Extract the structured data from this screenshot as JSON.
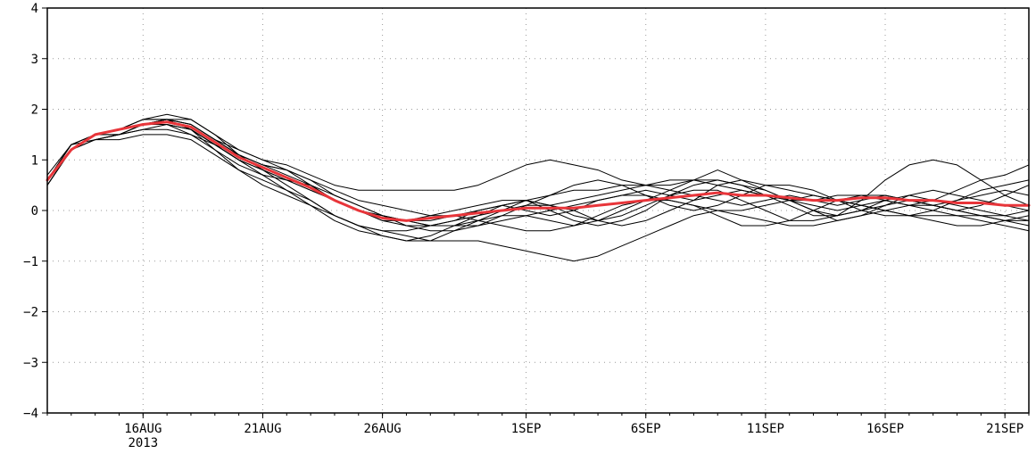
{
  "chart_data": {
    "type": "line",
    "title": "",
    "xlabel": "",
    "ylabel": "",
    "x_start": "2013-08-12",
    "x_end": "2013-09-22",
    "xlim": [
      "2013-08-12",
      "2013-09-22"
    ],
    "ylim": [
      -4,
      4
    ],
    "x_ticks": [
      {
        "date": "2013-08-16",
        "label": "16AUG",
        "sublabel": "2013"
      },
      {
        "date": "2013-08-21",
        "label": "21AUG"
      },
      {
        "date": "2013-08-26",
        "label": "26AUG"
      },
      {
        "date": "2013-09-01",
        "label": "1SEP"
      },
      {
        "date": "2013-09-06",
        "label": "6SEP"
      },
      {
        "date": "2013-09-11",
        "label": "11SEP"
      },
      {
        "date": "2013-09-16",
        "label": "16SEP"
      },
      {
        "date": "2013-09-21",
        "label": "21SEP"
      }
    ],
    "y_ticks": [
      {
        "value": 4,
        "label": "4"
      },
      {
        "value": 3,
        "label": "3"
      },
      {
        "value": 2,
        "label": "2"
      },
      {
        "value": 1,
        "label": "1"
      },
      {
        "value": 0,
        "label": "0"
      },
      {
        "value": -1,
        "label": "−1"
      },
      {
        "value": -2,
        "label": "−2"
      },
      {
        "value": -3,
        "label": "−3"
      },
      {
        "value": -4,
        "label": "−4"
      }
    ],
    "grid": true,
    "legend": "none",
    "ensemble_color": "#000000",
    "mean_color": "#e8353a",
    "x": [
      "2013-08-12",
      "2013-08-13",
      "2013-08-14",
      "2013-08-15",
      "2013-08-16",
      "2013-08-17",
      "2013-08-18",
      "2013-08-19",
      "2013-08-20",
      "2013-08-21",
      "2013-08-22",
      "2013-08-23",
      "2013-08-24",
      "2013-08-25",
      "2013-08-26",
      "2013-08-27",
      "2013-08-28",
      "2013-08-29",
      "2013-08-30",
      "2013-08-31",
      "2013-09-01",
      "2013-09-02",
      "2013-09-03",
      "2013-09-04",
      "2013-09-05",
      "2013-09-06",
      "2013-09-07",
      "2013-09-08",
      "2013-09-09",
      "2013-09-10",
      "2013-09-11",
      "2013-09-12",
      "2013-09-13",
      "2013-09-14",
      "2013-09-15",
      "2013-09-16",
      "2013-09-17",
      "2013-09-18",
      "2013-09-19",
      "2013-09-20",
      "2013-09-21",
      "2013-09-22"
    ],
    "series": [
      {
        "role": "ensemble",
        "values": [
          0.5,
          1.2,
          1.5,
          1.5,
          1.6,
          1.7,
          1.6,
          1.3,
          1.0,
          0.8,
          0.6,
          0.4,
          0.2,
          0.0,
          -0.1,
          -0.2,
          -0.2,
          -0.1,
          0.0,
          0.1,
          0.0,
          -0.1,
          0.0,
          0.2,
          0.3,
          0.4,
          0.3,
          0.2,
          0.3,
          0.4,
          0.3,
          0.2,
          0.1,
          0.0,
          0.1,
          0.2,
          0.1,
          0.0,
          -0.1,
          -0.2,
          -0.3,
          -0.4
        ]
      },
      {
        "role": "ensemble",
        "values": [
          0.6,
          1.3,
          1.4,
          1.4,
          1.5,
          1.5,
          1.4,
          1.1,
          0.8,
          0.6,
          0.4,
          0.1,
          -0.2,
          -0.4,
          -0.5,
          -0.6,
          -0.5,
          -0.3,
          -0.1,
          0.1,
          0.2,
          0.0,
          -0.2,
          -0.3,
          -0.2,
          0.0,
          0.3,
          0.5,
          0.6,
          0.5,
          0.4,
          0.2,
          0.0,
          -0.1,
          0.0,
          0.2,
          0.3,
          0.2,
          0.1,
          0.0,
          -0.1,
          -0.2
        ]
      },
      {
        "role": "ensemble",
        "values": [
          0.7,
          1.3,
          1.5,
          1.6,
          1.8,
          1.9,
          1.8,
          1.5,
          1.2,
          1.0,
          0.9,
          0.7,
          0.5,
          0.4,
          0.4,
          0.4,
          0.4,
          0.4,
          0.5,
          0.7,
          0.9,
          1.0,
          0.9,
          0.8,
          0.6,
          0.5,
          0.4,
          0.3,
          0.2,
          0.1,
          0.2,
          0.3,
          0.2,
          0.1,
          0.2,
          0.3,
          0.2,
          0.1,
          0.0,
          0.1,
          0.3,
          0.5
        ]
      },
      {
        "role": "ensemble",
        "values": [
          0.6,
          1.2,
          1.4,
          1.5,
          1.7,
          1.8,
          1.7,
          1.4,
          1.1,
          0.8,
          0.5,
          0.2,
          -0.1,
          -0.3,
          -0.4,
          -0.5,
          -0.6,
          -0.6,
          -0.6,
          -0.7,
          -0.8,
          -0.9,
          -1.0,
          -0.9,
          -0.7,
          -0.5,
          -0.3,
          -0.1,
          0.0,
          0.0,
          0.1,
          0.2,
          0.3,
          0.2,
          0.1,
          0.0,
          -0.1,
          -0.1,
          -0.1,
          -0.1,
          -0.2,
          -0.2
        ]
      },
      {
        "role": "ensemble",
        "values": [
          0.5,
          1.2,
          1.5,
          1.6,
          1.8,
          1.8,
          1.6,
          1.2,
          0.8,
          0.5,
          0.3,
          0.1,
          -0.1,
          -0.3,
          -0.5,
          -0.6,
          -0.6,
          -0.4,
          -0.2,
          0.0,
          0.2,
          0.3,
          0.4,
          0.4,
          0.5,
          0.5,
          0.6,
          0.6,
          0.5,
          0.4,
          0.3,
          0.2,
          0.2,
          0.3,
          0.3,
          0.2,
          0.1,
          0.1,
          0.2,
          0.3,
          0.4,
          0.3
        ]
      },
      {
        "role": "ensemble",
        "values": [
          0.6,
          1.3,
          1.5,
          1.5,
          1.7,
          1.7,
          1.5,
          1.3,
          1.1,
          0.9,
          0.8,
          0.6,
          0.4,
          0.2,
          0.1,
          0.0,
          -0.1,
          -0.1,
          -0.2,
          -0.3,
          -0.4,
          -0.4,
          -0.3,
          -0.1,
          0.1,
          0.2,
          0.4,
          0.6,
          0.8,
          0.6,
          0.4,
          0.2,
          0.0,
          -0.2,
          -0.1,
          0.1,
          0.3,
          0.4,
          0.3,
          0.2,
          0.1,
          0.0
        ]
      },
      {
        "role": "ensemble",
        "values": [
          0.6,
          1.2,
          1.5,
          1.6,
          1.7,
          1.8,
          1.7,
          1.4,
          1.1,
          0.9,
          0.7,
          0.5,
          0.2,
          0.0,
          -0.2,
          -0.3,
          -0.3,
          -0.2,
          0.0,
          0.1,
          0.2,
          0.1,
          -0.1,
          -0.2,
          -0.1,
          0.1,
          0.3,
          0.4,
          0.4,
          0.2,
          0.0,
          -0.2,
          -0.2,
          -0.1,
          0.2,
          0.6,
          0.9,
          1.0,
          0.9,
          0.6,
          0.3,
          0.1
        ]
      },
      {
        "role": "ensemble",
        "values": [
          0.5,
          1.2,
          1.4,
          1.5,
          1.6,
          1.6,
          1.5,
          1.2,
          0.9,
          0.7,
          0.6,
          0.5,
          0.3,
          0.1,
          -0.1,
          -0.2,
          -0.3,
          -0.3,
          -0.3,
          -0.2,
          -0.1,
          0.0,
          0.1,
          0.2,
          0.3,
          0.3,
          0.2,
          0.1,
          0.0,
          -0.1,
          -0.2,
          -0.3,
          -0.3,
          -0.2,
          -0.1,
          0.0,
          0.1,
          0.2,
          0.4,
          0.6,
          0.7,
          0.9
        ]
      },
      {
        "role": "ensemble",
        "values": [
          0.6,
          1.3,
          1.5,
          1.6,
          1.8,
          1.8,
          1.6,
          1.3,
          1.0,
          0.7,
          0.4,
          0.2,
          -0.1,
          -0.3,
          -0.4,
          -0.4,
          -0.3,
          -0.2,
          -0.1,
          0.0,
          0.1,
          0.1,
          0.2,
          0.3,
          0.4,
          0.5,
          0.5,
          0.6,
          0.6,
          0.5,
          0.3,
          0.1,
          -0.1,
          -0.1,
          0.0,
          0.1,
          0.2,
          0.1,
          0.0,
          -0.1,
          -0.2,
          -0.3
        ]
      },
      {
        "role": "ensemble",
        "values": [
          0.6,
          1.2,
          1.4,
          1.5,
          1.7,
          1.8,
          1.7,
          1.4,
          1.2,
          1.0,
          0.8,
          0.5,
          0.2,
          0.0,
          -0.2,
          -0.2,
          -0.1,
          0.0,
          0.1,
          0.2,
          0.2,
          0.1,
          0.0,
          -0.2,
          -0.3,
          -0.2,
          0.0,
          0.2,
          0.5,
          0.6,
          0.5,
          0.4,
          0.3,
          0.2,
          0.1,
          0.0,
          -0.1,
          -0.2,
          -0.3,
          -0.3,
          -0.2,
          -0.1
        ]
      },
      {
        "role": "ensemble",
        "values": [
          0.5,
          1.2,
          1.5,
          1.6,
          1.7,
          1.8,
          1.8,
          1.5,
          1.1,
          0.9,
          0.8,
          0.6,
          0.3,
          0.1,
          -0.1,
          -0.3,
          -0.4,
          -0.4,
          -0.3,
          -0.1,
          0.1,
          0.3,
          0.5,
          0.6,
          0.5,
          0.3,
          0.1,
          0.0,
          0.1,
          0.3,
          0.5,
          0.5,
          0.4,
          0.2,
          0.0,
          -0.1,
          -0.1,
          0.0,
          0.2,
          0.4,
          0.5,
          0.6
        ]
      },
      {
        "role": "ensemble",
        "values": [
          0.6,
          1.3,
          1.5,
          1.6,
          1.7,
          1.7,
          1.6,
          1.3,
          1.0,
          0.8,
          0.6,
          0.4,
          0.2,
          0.0,
          -0.1,
          -0.2,
          -0.3,
          -0.3,
          -0.2,
          -0.1,
          -0.1,
          -0.2,
          -0.3,
          -0.2,
          0.0,
          0.2,
          0.2,
          0.1,
          -0.1,
          -0.3,
          -0.3,
          -0.2,
          0.0,
          0.2,
          0.3,
          0.3,
          0.2,
          0.1,
          0.0,
          -0.1,
          -0.1,
          0.0
        ]
      },
      {
        "role": "mean",
        "values": [
          0.6,
          1.2,
          1.5,
          1.6,
          1.7,
          1.75,
          1.65,
          1.35,
          1.05,
          0.85,
          0.65,
          0.45,
          0.2,
          0.0,
          -0.15,
          -0.2,
          -0.15,
          -0.1,
          -0.05,
          0.0,
          0.05,
          0.05,
          0.05,
          0.1,
          0.15,
          0.2,
          0.25,
          0.3,
          0.35,
          0.3,
          0.3,
          0.25,
          0.2,
          0.2,
          0.25,
          0.25,
          0.2,
          0.2,
          0.15,
          0.15,
          0.1,
          0.1
        ]
      }
    ]
  }
}
